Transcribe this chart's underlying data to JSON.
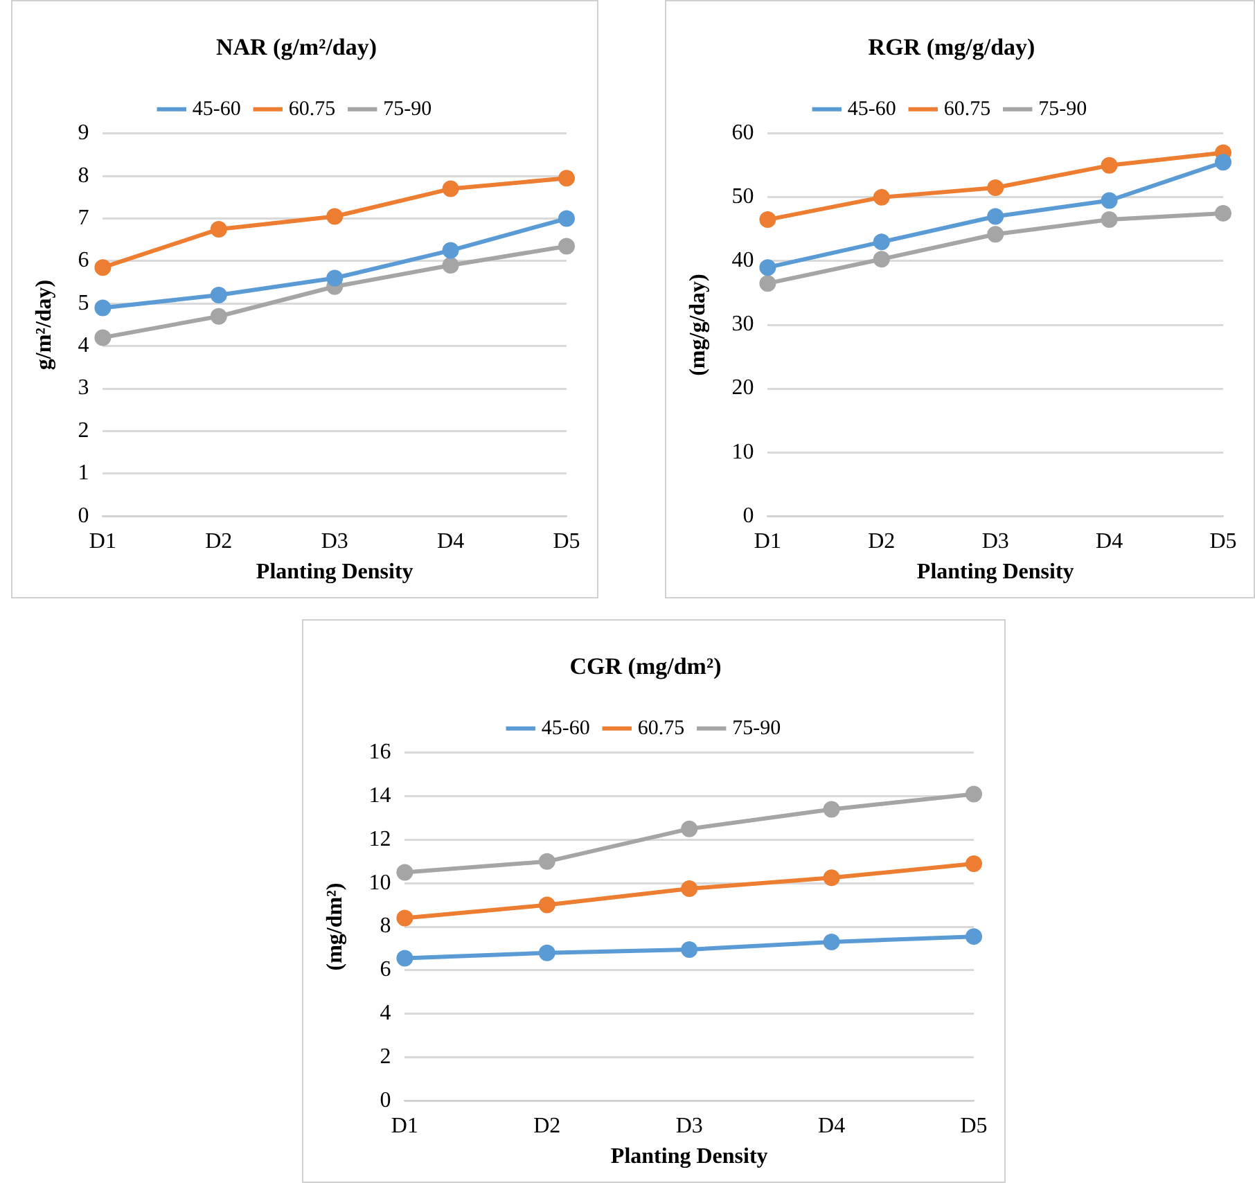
{
  "chart_data": [
    {
      "type": "line",
      "title": "NAR (g/m²/day)",
      "xlabel": "Planting Density",
      "ylabel": "g/m²/day)",
      "categories": [
        "D1",
        "D2",
        "D3",
        "D4",
        "D5"
      ],
      "series": [
        {
          "name": "45-60",
          "color": "#5b9bd5",
          "values": [
            4.9,
            5.2,
            5.6,
            6.25,
            7.0
          ]
        },
        {
          "name": "60.75",
          "color": "#ed7d31",
          "values": [
            5.85,
            6.75,
            7.05,
            7.7,
            7.95
          ]
        },
        {
          "name": "75-90",
          "color": "#a5a5a5",
          "values": [
            4.2,
            4.7,
            5.4,
            5.9,
            6.35
          ]
        }
      ],
      "ylim": [
        0,
        9
      ],
      "yticks": [
        0,
        1,
        2,
        3,
        4,
        5,
        6,
        7,
        8,
        9
      ],
      "grid": "y",
      "legend": "top",
      "marker": "circle",
      "line_style": "solid"
    },
    {
      "type": "line",
      "title": "RGR (mg/g/day)",
      "xlabel": "Planting Density",
      "ylabel": "(mg/g/day)",
      "categories": [
        "D1",
        "D2",
        "D3",
        "D4",
        "D5"
      ],
      "series": [
        {
          "name": "45-60",
          "color": "#5b9bd5",
          "values": [
            39,
            43,
            47,
            49.5,
            55.5
          ]
        },
        {
          "name": "60.75",
          "color": "#ed7d31",
          "values": [
            46.5,
            50,
            51.5,
            55,
            57
          ]
        },
        {
          "name": "75-90",
          "color": "#a5a5a5",
          "values": [
            36.5,
            40.3,
            44.2,
            46.5,
            47.5
          ]
        }
      ],
      "ylim": [
        0,
        60
      ],
      "yticks": [
        0,
        10,
        20,
        30,
        40,
        50,
        60
      ],
      "grid": "y",
      "legend": "top",
      "marker": "circle",
      "line_style": "solid"
    },
    {
      "type": "line",
      "title": "CGR (mg/dm²)",
      "xlabel": "Planting Density",
      "ylabel": "(mg/dm²)",
      "categories": [
        "D1",
        "D2",
        "D3",
        "D4",
        "D5"
      ],
      "series": [
        {
          "name": "45-60",
          "color": "#5b9bd5",
          "values": [
            6.55,
            6.8,
            6.95,
            7.3,
            7.55
          ]
        },
        {
          "name": "60.75",
          "color": "#ed7d31",
          "values": [
            8.4,
            9,
            9.75,
            10.25,
            10.9
          ]
        },
        {
          "name": "75-90",
          "color": "#a5a5a5",
          "values": [
            10.5,
            11,
            12.5,
            13.4,
            14.1
          ]
        }
      ],
      "ylim": [
        0,
        16
      ],
      "yticks": [
        0,
        2,
        4,
        6,
        8,
        10,
        12,
        14,
        16
      ],
      "grid": "y",
      "legend": "top",
      "marker": "circle",
      "line_style": "solid"
    }
  ]
}
